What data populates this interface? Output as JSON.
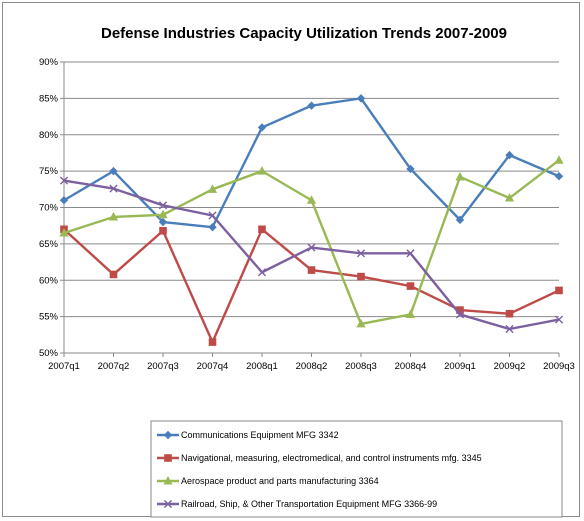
{
  "chart_data": {
    "type": "line",
    "title": "Defense Industries Capacity Utilization Trends 2007-2009",
    "xlabel": "",
    "ylabel": "",
    "categories": [
      "2007q1",
      "2007q2",
      "2007q3",
      "2007q4",
      "2008q1",
      "2008q2",
      "2008q3",
      "2008q4",
      "2009q1",
      "2009q2",
      "2009q3"
    ],
    "ylim": [
      50,
      90
    ],
    "yticks": [
      "50%",
      "55%",
      "60%",
      "65%",
      "70%",
      "75%",
      "80%",
      "85%",
      "90%"
    ],
    "grid": true,
    "legend_position": "bottom",
    "series": [
      {
        "name": "Communications Equipment MFG 3342",
        "color": "#4a7ebb",
        "marker": "diamond",
        "values": [
          71.0,
          75.0,
          68.0,
          67.3,
          81.0,
          84.0,
          85.0,
          75.3,
          68.3,
          77.2,
          74.3
        ]
      },
      {
        "name": "Navigational, measuring, electromedical, and control instruments mfg. 3345",
        "color": "#be4b48",
        "marker": "square",
        "values": [
          67.0,
          60.8,
          66.8,
          51.5,
          67.0,
          61.4,
          60.5,
          59.2,
          55.9,
          55.4,
          58.6
        ]
      },
      {
        "name": "Aerospace product and parts manufacturing 3364",
        "color": "#98b954",
        "marker": "triangle",
        "values": [
          66.5,
          68.7,
          69.0,
          72.5,
          75.0,
          71.0,
          54.0,
          55.3,
          74.2,
          71.3,
          76.5
        ]
      },
      {
        "name": "Railroad, Ship, & Other Transportation Equipment MFG 3366-99",
        "color": "#7d60a0",
        "marker": "x",
        "values": [
          73.7,
          72.6,
          70.3,
          68.9,
          61.1,
          64.5,
          63.7,
          63.7,
          55.3,
          53.3,
          54.6
        ]
      }
    ]
  }
}
